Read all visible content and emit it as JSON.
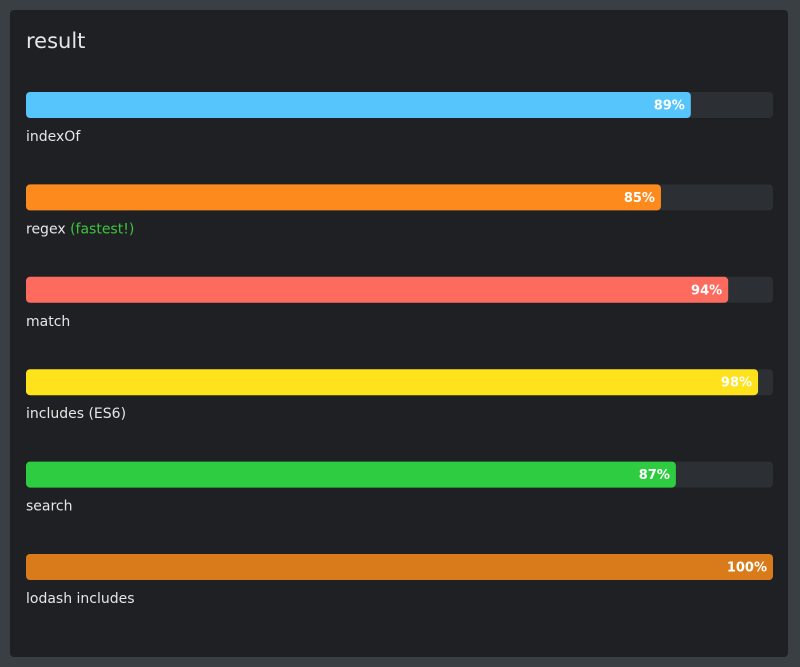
{
  "chart_data": {
    "type": "progress",
    "title": "result",
    "categories": [
      "indexOf",
      "regex",
      "match",
      "includes (ES6)",
      "search",
      "lodash includes"
    ],
    "notes": [
      null,
      "(fastest!)",
      null,
      null,
      null,
      null
    ],
    "values": [
      89,
      85,
      94,
      98,
      87,
      100
    ],
    "value_labels": [
      "89%",
      "85%",
      "94%",
      "98%",
      "87%",
      "100%"
    ],
    "colors": [
      "#55c5fb",
      "#fd8a1c",
      "#fd6a5e",
      "#fde21c",
      "#2ecc40",
      "#d97b1b"
    ],
    "note_color": "#3ec43e",
    "xlim": [
      0,
      100
    ]
  }
}
